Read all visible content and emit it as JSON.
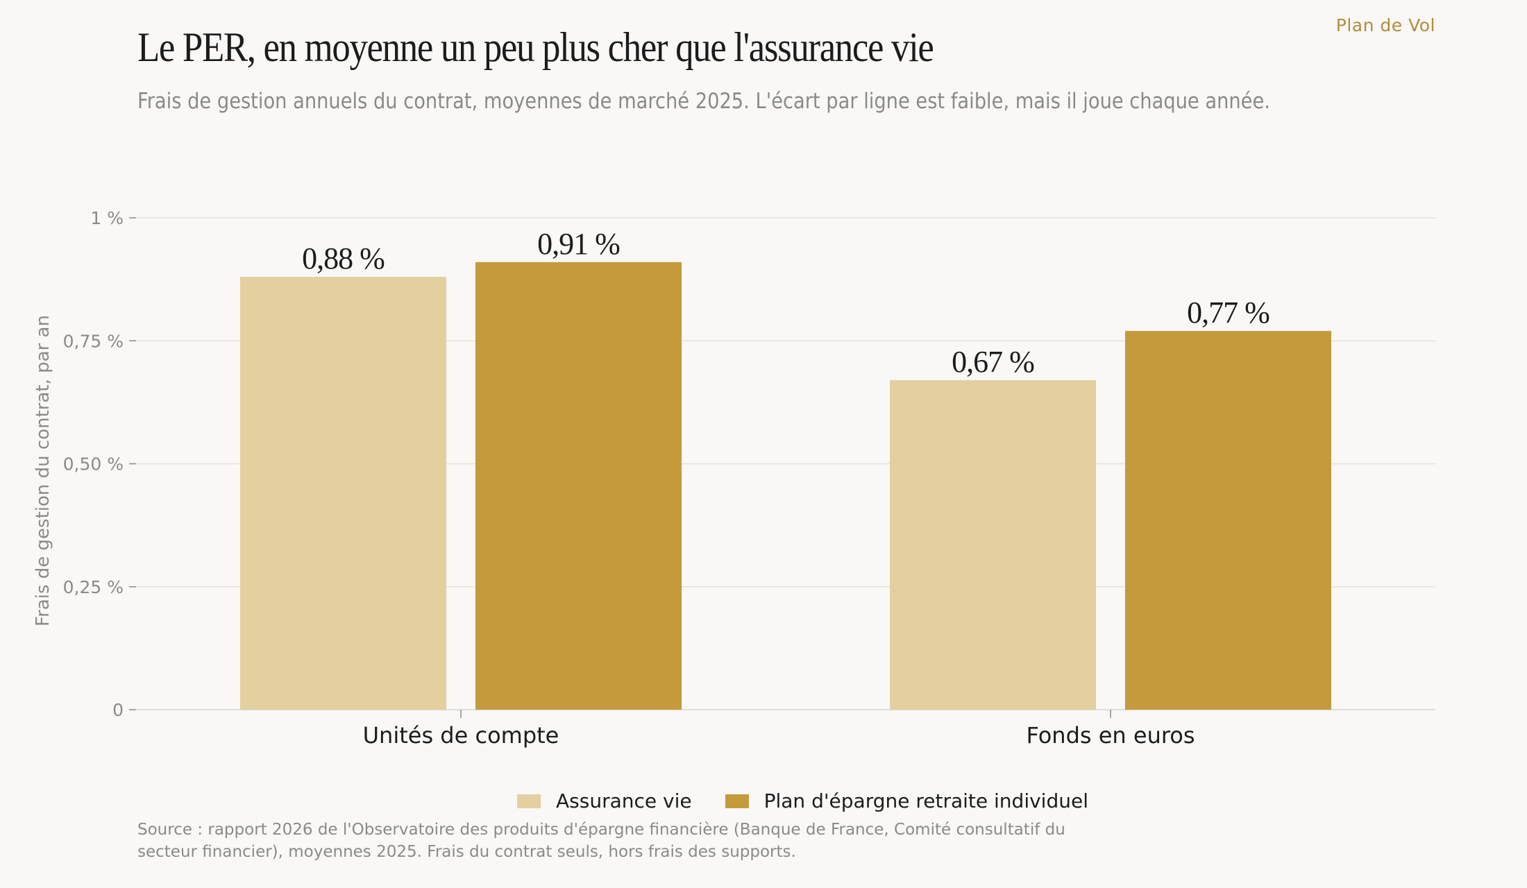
{
  "brand": "Plan de Vol",
  "chart_data": {
    "type": "bar",
    "title": "Le PER, en moyenne un peu plus cher que l'assurance vie",
    "subtitle": "Frais de gestion annuels du contrat, moyennes de marché 2025. L'écart par ligne est faible, mais il joue chaque année.",
    "ylabel": "Frais de gestion du contrat, par an",
    "ylim": [
      0,
      1
    ],
    "yticks": [
      {
        "value": 0,
        "label": "0"
      },
      {
        "value": 0.25,
        "label": "0,25 %"
      },
      {
        "value": 0.5,
        "label": "0,50 %"
      },
      {
        "value": 0.75,
        "label": "0,75 %"
      },
      {
        "value": 1,
        "label": "1 %"
      }
    ],
    "categories": [
      "Unités de compte",
      "Fonds en euros"
    ],
    "series": [
      {
        "name": "Assurance vie",
        "color": "#e4cf9e",
        "values": [
          0.88,
          0.67
        ],
        "labels": [
          "0,88 %",
          "0,67 %"
        ]
      },
      {
        "name": "Plan d'épargne retraite individuel",
        "color": "#c49a3c",
        "values": [
          0.91,
          0.77
        ],
        "labels": [
          "0,91 %",
          "0,77 %"
        ]
      }
    ],
    "grid": true,
    "legend": "bottom-center"
  },
  "source": "Source : rapport 2026 de l'Observatoire des produits d'épargne financière (Banque de France, Comité consultatif du secteur financier), moyennes 2025. Frais du contrat seuls, hors frais des supports."
}
